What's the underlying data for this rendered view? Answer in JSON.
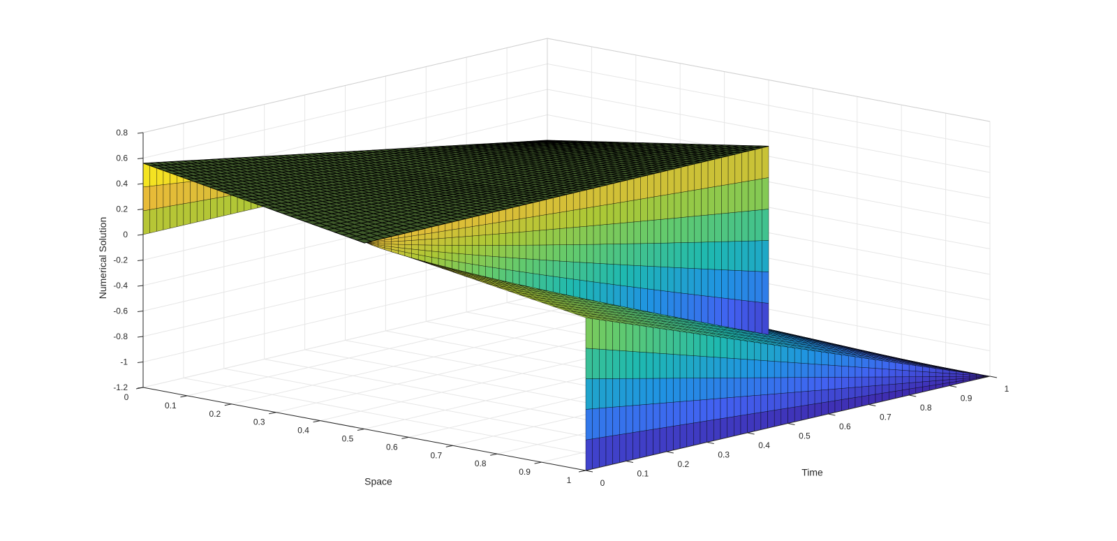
{
  "chart_data": {
    "type": "surface",
    "xlabel": "Space",
    "ylabel": "Time",
    "zlabel": "Numerical Solution",
    "xlim": [
      0,
      1
    ],
    "ylim": [
      0,
      1
    ],
    "zlim": [
      -1.2,
      0.8
    ],
    "x_ticks": [
      "0",
      "0.1",
      "0.2",
      "0.3",
      "0.4",
      "0.5",
      "0.6",
      "0.7",
      "0.8",
      "0.9",
      "1"
    ],
    "y_ticks": [
      "0",
      "0.1",
      "0.2",
      "0.3",
      "0.4",
      "0.5",
      "0.6",
      "0.7",
      "0.8",
      "0.9",
      "1"
    ],
    "z_ticks": [
      "-1.2",
      "-1",
      "-0.8",
      "-0.6",
      "-0.4",
      "-0.2",
      "0",
      "0.2",
      "0.4",
      "0.6",
      "0.8"
    ],
    "grid": true,
    "colormap": "parula",
    "wall_edges": [
      {
        "name": "surface at x=0",
        "x": 0,
        "values": [
          {
            "y": 0,
            "z": 0.56
          },
          {
            "y": 1,
            "z": 0.0
          }
        ]
      },
      {
        "name": "surface at x=0.5 (upper sheet)",
        "x": 0.5,
        "values": [
          {
            "y": 0,
            "z": 0.26
          },
          {
            "y": 1,
            "z": 0.28
          }
        ]
      },
      {
        "name": "surface at x=0.5 (lower sheet)",
        "x": 0.5,
        "values": [
          {
            "y": 0,
            "z": 0.27
          },
          {
            "y": 1,
            "z": -1.2
          }
        ]
      },
      {
        "name": "surface at x=1",
        "x": 1,
        "values": [
          {
            "y": 0,
            "z": 0.0
          },
          {
            "y": 1,
            "z": -1.2
          }
        ]
      }
    ],
    "corner_values": [
      {
        "x": 0,
        "y": 0,
        "z": 0.56
      },
      {
        "x": 0,
        "y": 1,
        "z": 0.0
      },
      {
        "x": 1,
        "y": 0,
        "z": 0.0
      },
      {
        "x": 1,
        "y": 1,
        "z": -1.2
      }
    ]
  }
}
